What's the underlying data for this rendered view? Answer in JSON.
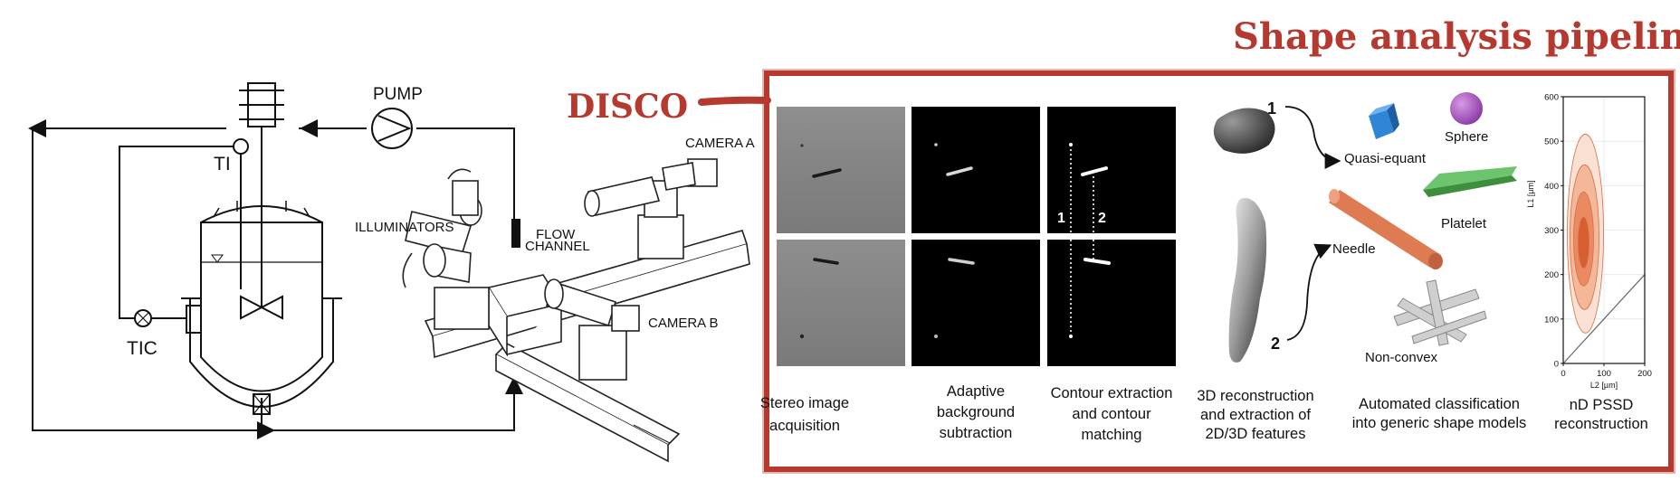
{
  "title": "Shape analysis pipeline",
  "disco_label": "DISCO",
  "reactor": {
    "pump": "PUMP",
    "ti": "TI",
    "tic": "TIC"
  },
  "setup": {
    "camera_a": "CAMERA A",
    "camera_b": "CAMERA B",
    "illuminators": "ILLUMINATORS",
    "flow_channel_line1": "FLOW",
    "flow_channel_line2": "CHANNEL"
  },
  "matching": {
    "marker_1": "1",
    "marker_2": "2"
  },
  "reconstruction": {
    "view_1": "1",
    "view_2": "2"
  },
  "shapes": {
    "quasi_equant": "Quasi-equant",
    "sphere": "Sphere",
    "platelet": "Platelet",
    "needle": "Needle",
    "non_convex": "Non-convex"
  },
  "pipeline_steps": [
    {
      "line1": "Stereo image",
      "line2": "acquisition",
      "line3": ""
    },
    {
      "line1": "Adaptive",
      "line2": "background",
      "line3": "subtraction"
    },
    {
      "line1": "Contour extraction",
      "line2": "and contour",
      "line3": "matching"
    },
    {
      "line1": "3D reconstruction",
      "line2": "and extraction of",
      "line3": "2D/3D features"
    },
    {
      "line1": "Automated classification",
      "line2": "into generic shape models",
      "line3": ""
    },
    {
      "line1": "nD PSSD",
      "line2": "reconstruction",
      "line3": ""
    }
  ],
  "colors": {
    "brush_red": "#b5392f",
    "sphere": "#b05cc8",
    "quasi_equant": "#2f86d6",
    "platelet": "#5cb85c",
    "needle": "#de7b52",
    "contour": "#e06a3a"
  },
  "chart_data": {
    "type": "heatmap",
    "title": "",
    "xlabel": "L2 [µm]",
    "ylabel": "L1 [µm]",
    "xlim": [
      0,
      200
    ],
    "ylim": [
      0,
      600
    ],
    "x_ticks": [
      "0",
      "100",
      "200"
    ],
    "y_ticks": [
      "0",
      "100",
      "200",
      "300",
      "400",
      "500",
      "600"
    ],
    "reference_line": {
      "from": [
        0,
        0
      ],
      "to": [
        200,
        200
      ]
    },
    "density_peak": {
      "x": 50,
      "y": 280
    }
  }
}
